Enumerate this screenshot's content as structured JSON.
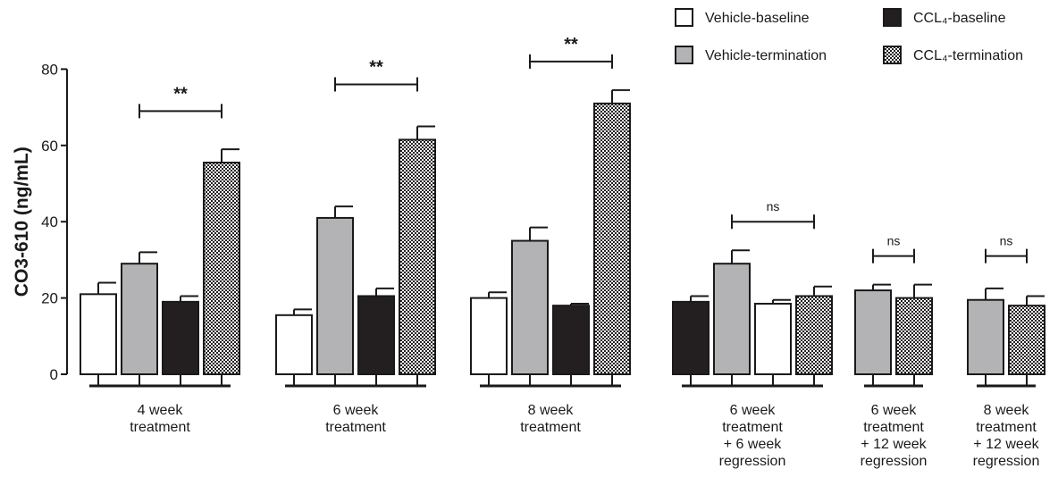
{
  "colors": {
    "vehicle_baseline": "#ffffff",
    "vehicle_termination": "#b3b3b6",
    "ccl4_baseline": "#231f20",
    "checker_light": "#ffffff",
    "checker_dark": "#231f20",
    "axis": "#1a1a1a"
  },
  "chart_data": {
    "type": "bar",
    "ylabel": "CO3-610 (ng/mL)",
    "ylim": [
      0,
      80
    ],
    "yticks": [
      "0",
      "20",
      "40",
      "60",
      "80"
    ],
    "grid": false,
    "legend_position": "top-right",
    "series": [
      {
        "name": "Vehicle-baseline",
        "fill": "white"
      },
      {
        "name": "Vehicle-termination",
        "fill": "gray"
      },
      {
        "name": "CCL₄-baseline",
        "fill": "black"
      },
      {
        "name": "CCL₄-termination",
        "fill": "checker"
      }
    ],
    "groups": [
      {
        "label": [
          "4 week",
          "treatment"
        ],
        "bars": [
          {
            "series": "Vehicle-baseline",
            "value": 21,
            "error": 3
          },
          {
            "series": "Vehicle-termination",
            "value": 29,
            "error": 3
          },
          {
            "series": "CCL₄-baseline",
            "value": 19,
            "error": 1.5
          },
          {
            "series": "CCL₄-termination",
            "value": 55.5,
            "error": 3.5
          }
        ],
        "significance": {
          "text": "**",
          "from_bar": 1,
          "to_bar": 3,
          "level": 69
        }
      },
      {
        "label": [
          "6 week",
          "treatment"
        ],
        "bars": [
          {
            "series": "Vehicle-baseline",
            "value": 15.5,
            "error": 1.5
          },
          {
            "series": "Vehicle-termination",
            "value": 41,
            "error": 3
          },
          {
            "series": "CCL₄-baseline",
            "value": 20.5,
            "error": 2
          },
          {
            "series": "CCL₄-termination",
            "value": 61.5,
            "error": 3.5
          }
        ],
        "significance": {
          "text": "**",
          "from_bar": 1,
          "to_bar": 3,
          "level": 76
        }
      },
      {
        "label": [
          "8 week",
          "treatment"
        ],
        "bars": [
          {
            "series": "Vehicle-baseline",
            "value": 20,
            "error": 1.5
          },
          {
            "series": "Vehicle-termination",
            "value": 35,
            "error": 3.5
          },
          {
            "series": "CCL₄-baseline",
            "value": 18,
            "error": 0.5
          },
          {
            "series": "CCL₄-termination",
            "value": 71,
            "error": 3.5
          }
        ],
        "significance": {
          "text": "**",
          "from_bar": 1,
          "to_bar": 3,
          "level": 82
        }
      },
      {
        "label": [
          "6 week",
          "treatment",
          "+ 6 week",
          "regression"
        ],
        "bars": [
          {
            "series": "CCL₄-baseline",
            "value": 19,
            "error": 1.5
          },
          {
            "series": "Vehicle-termination",
            "value": 29,
            "error": 3.5
          },
          {
            "series": "Vehicle-baseline",
            "value": 18.5,
            "error": 1
          },
          {
            "series": "CCL₄-termination",
            "value": 20.5,
            "error": 2.5
          }
        ],
        "significance": {
          "text": "ns",
          "from_bar": 1,
          "to_bar": 3,
          "level": 40
        }
      },
      {
        "label": [
          "6 week",
          "treatment",
          "+ 12 week",
          "regression"
        ],
        "bars": [
          {
            "series": "Vehicle-termination",
            "value": 22,
            "error": 1.5
          },
          {
            "series": "CCL₄-termination",
            "value": 20,
            "error": 3.5
          }
        ],
        "significance": {
          "text": "ns",
          "from_bar": 0,
          "to_bar": 1,
          "level": 31
        }
      },
      {
        "label": [
          "8 week",
          "treatment",
          "+ 12 week",
          "regression"
        ],
        "bars": [
          {
            "series": "Vehicle-termination",
            "value": 19.5,
            "error": 3
          },
          {
            "series": "CCL₄-termination",
            "value": 18,
            "error": 2.5
          }
        ],
        "significance": {
          "text": "ns",
          "from_bar": 0,
          "to_bar": 1,
          "level": 31
        }
      }
    ]
  }
}
